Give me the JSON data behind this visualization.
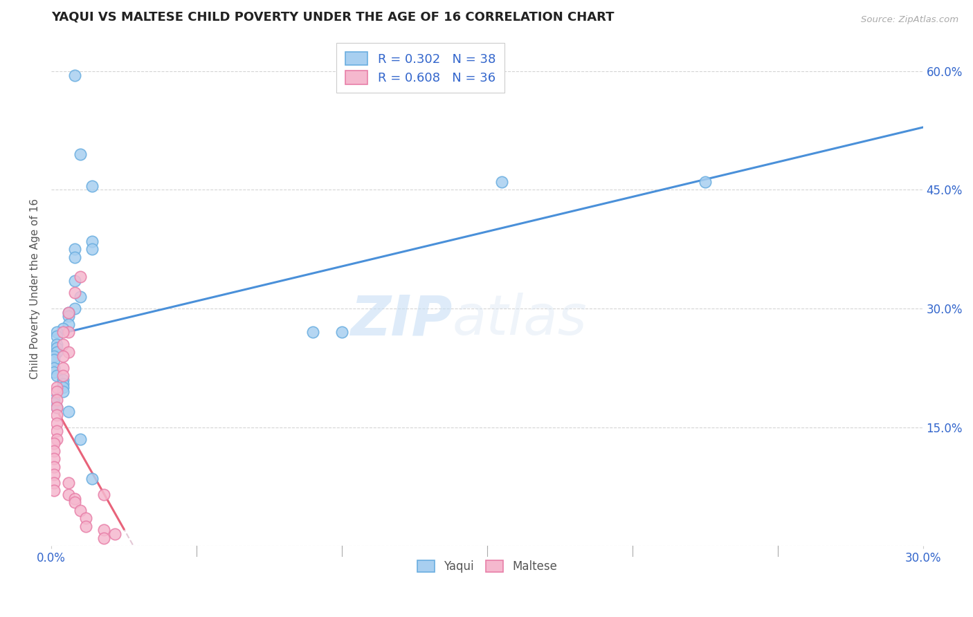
{
  "title": "YAQUI VS MALTESE CHILD POVERTY UNDER THE AGE OF 16 CORRELATION CHART",
  "source": "Source: ZipAtlas.com",
  "ylabel": "Child Poverty Under the Age of 16",
  "xlim": [
    0,
    0.3
  ],
  "ylim": [
    0,
    0.65
  ],
  "xticks": [
    0.0,
    0.05,
    0.1,
    0.15,
    0.2,
    0.25,
    0.3
  ],
  "xticklabels": [
    "0.0%",
    "",
    "",
    "",
    "",
    "",
    "30.0%"
  ],
  "yticks": [
    0.0,
    0.15,
    0.3,
    0.45,
    0.6
  ],
  "yticklabels_right": [
    "",
    "15.0%",
    "30.0%",
    "45.0%",
    "60.0%"
  ],
  "yaqui_R": 0.302,
  "yaqui_N": 38,
  "maltese_R": 0.608,
  "maltese_N": 36,
  "yaqui_color": "#a8cff0",
  "maltese_color": "#f5b8ce",
  "yaqui_edge_color": "#6aaee0",
  "maltese_edge_color": "#e87fa8",
  "yaqui_line_color": "#4a90d9",
  "maltese_line_color": "#e8637a",
  "yaqui_scatter": [
    [
      0.008,
      0.595
    ],
    [
      0.01,
      0.495
    ],
    [
      0.014,
      0.455
    ],
    [
      0.008,
      0.375
    ],
    [
      0.008,
      0.365
    ],
    [
      0.014,
      0.385
    ],
    [
      0.014,
      0.375
    ],
    [
      0.008,
      0.335
    ],
    [
      0.01,
      0.315
    ],
    [
      0.008,
      0.3
    ],
    [
      0.006,
      0.295
    ],
    [
      0.006,
      0.29
    ],
    [
      0.006,
      0.28
    ],
    [
      0.004,
      0.275
    ],
    [
      0.002,
      0.27
    ],
    [
      0.002,
      0.265
    ],
    [
      0.002,
      0.255
    ],
    [
      0.002,
      0.25
    ],
    [
      0.002,
      0.245
    ],
    [
      0.001,
      0.24
    ],
    [
      0.001,
      0.235
    ],
    [
      0.001,
      0.225
    ],
    [
      0.001,
      0.22
    ],
    [
      0.002,
      0.215
    ],
    [
      0.004,
      0.21
    ],
    [
      0.004,
      0.205
    ],
    [
      0.004,
      0.2
    ],
    [
      0.004,
      0.195
    ],
    [
      0.001,
      0.185
    ],
    [
      0.001,
      0.18
    ],
    [
      0.002,
      0.175
    ],
    [
      0.006,
      0.17
    ],
    [
      0.01,
      0.135
    ],
    [
      0.014,
      0.085
    ],
    [
      0.09,
      0.27
    ],
    [
      0.1,
      0.27
    ],
    [
      0.155,
      0.46
    ],
    [
      0.225,
      0.46
    ]
  ],
  "maltese_scatter": [
    [
      0.01,
      0.34
    ],
    [
      0.008,
      0.32
    ],
    [
      0.006,
      0.295
    ],
    [
      0.006,
      0.27
    ],
    [
      0.004,
      0.27
    ],
    [
      0.004,
      0.255
    ],
    [
      0.006,
      0.245
    ],
    [
      0.004,
      0.24
    ],
    [
      0.004,
      0.225
    ],
    [
      0.004,
      0.215
    ],
    [
      0.002,
      0.2
    ],
    [
      0.002,
      0.195
    ],
    [
      0.002,
      0.185
    ],
    [
      0.002,
      0.175
    ],
    [
      0.002,
      0.165
    ],
    [
      0.002,
      0.155
    ],
    [
      0.002,
      0.145
    ],
    [
      0.002,
      0.135
    ],
    [
      0.001,
      0.13
    ],
    [
      0.001,
      0.12
    ],
    [
      0.001,
      0.11
    ],
    [
      0.001,
      0.1
    ],
    [
      0.001,
      0.09
    ],
    [
      0.001,
      0.08
    ],
    [
      0.001,
      0.07
    ],
    [
      0.006,
      0.08
    ],
    [
      0.006,
      0.065
    ],
    [
      0.008,
      0.06
    ],
    [
      0.008,
      0.055
    ],
    [
      0.01,
      0.045
    ],
    [
      0.012,
      0.035
    ],
    [
      0.012,
      0.025
    ],
    [
      0.018,
      0.065
    ],
    [
      0.018,
      0.02
    ],
    [
      0.018,
      0.01
    ],
    [
      0.022,
      0.015
    ]
  ],
  "watermark_zip": "ZIP",
  "watermark_atlas": "atlas",
  "background_color": "#ffffff",
  "grid_color": "#d0d0d0",
  "text_color": "#555555",
  "legend_text_color": "#3366cc",
  "source_color": "#aaaaaa"
}
